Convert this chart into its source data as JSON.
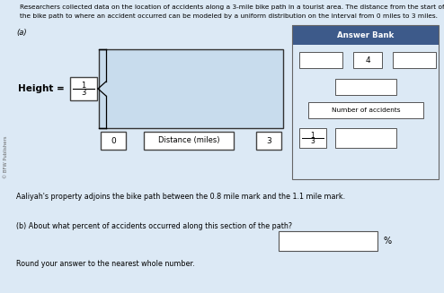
{
  "title_line1": "Researchers collected data on the location of accidents along a 3-mile bike path in a tourist area. The distance from the start of",
  "title_line2": "the bike path to where an accident occurred can be modeled by a uniform distribution on the interval from 0 miles to 3 miles.",
  "part_a_label": "(a)",
  "height_label": "Height =",
  "box_0_label": "0",
  "box_3_label": "3",
  "xlabel": "Distance (miles)",
  "answer_bank_title": "Answer Bank",
  "answer_bank_4": "4",
  "answer_bank_num_accidents": "Number of accidents",
  "part_b_text": "Aaliyah's property adjoins the bike path between the 0.8 mile mark and the 1.1 mile mark.",
  "part_b_question": "(b) About what percent of accidents occurred along this section of the path?",
  "part_b_round": "Round your answer to the nearest whole number.",
  "percent_sign": "%",
  "bg_color": "#dce9f5",
  "answer_bank_header_bg": "#3d5a8a",
  "answer_bank_header_text": "#ffffff",
  "answer_bank_body_bg": "#dce9f5",
  "uniform_rect_facecolor": "#c8dced",
  "white": "#ffffff",
  "dark_border": "#555555",
  "watermark": "© BFW Publishers"
}
